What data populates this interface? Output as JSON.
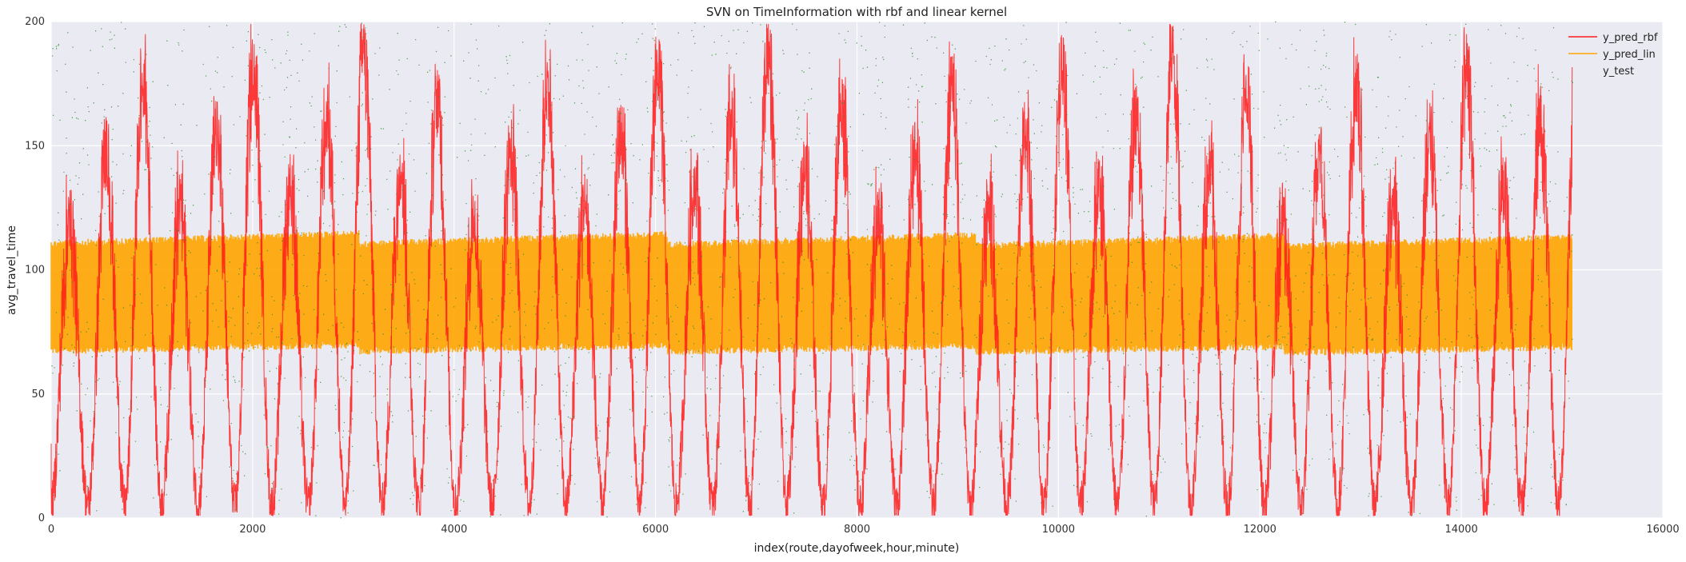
{
  "chart_data": {
    "type": "line",
    "title": "SVN on TimeInformation with rbf and linear kernel",
    "xlabel": "index(route,dayofweek,hour,minute)",
    "ylabel": "avg_travel_time",
    "xlim": [
      0,
      16000
    ],
    "ylim": [
      0,
      200
    ],
    "x_ticks": [
      0,
      2000,
      4000,
      6000,
      8000,
      10000,
      12000,
      14000,
      16000
    ],
    "y_ticks": [
      0,
      50,
      100,
      150,
      200
    ],
    "grid": true,
    "legend_position": "top-right",
    "series": [
      {
        "name": "y_pred_rbf",
        "kind": "line",
        "color": "#ff1a1a",
        "x_range": [
          0,
          15100
        ],
        "approx_period": 365,
        "approx_peak_range": [
          120,
          188
        ],
        "approx_trough_range": [
          5,
          12
        ]
      },
      {
        "name": "y_pred_lin",
        "kind": "line",
        "color": "#ffa500",
        "x_range": [
          0,
          15100
        ],
        "approx_band_low": 66,
        "approx_band_high": 114
      },
      {
        "name": "y_test",
        "kind": "scatter",
        "color": "#2e8b2e",
        "x_range": [
          0,
          15100
        ],
        "approx_range": [
          0,
          200
        ]
      }
    ]
  }
}
